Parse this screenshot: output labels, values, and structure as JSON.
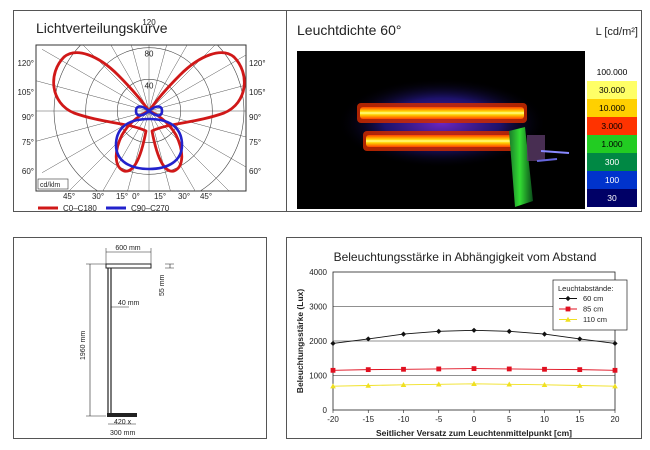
{
  "polar_panel": {
    "title": "Lichtverteilungskurve",
    "unit_label": "cd/klm",
    "radial_ticks": [
      "120",
      "80",
      "40"
    ],
    "left_angles": [
      "120°",
      "105°",
      "90°",
      "75°",
      "60°"
    ],
    "right_angles": [
      "120°",
      "105°",
      "90°",
      "75°",
      "60°"
    ],
    "bottom_angles": [
      "45°",
      "30°",
      "15°",
      "0°",
      "15°",
      "30°",
      "45°"
    ],
    "legend": [
      {
        "label": "C0–C180",
        "color": "#d01818"
      },
      {
        "label": "C90–C270",
        "color": "#2222cc"
      }
    ]
  },
  "luminance_panel": {
    "title": "Leuchtdichte 60°",
    "unit": "L [cd/m²]",
    "scale": [
      {
        "label": "100.000",
        "color": "#ffffff",
        "text": "#000"
      },
      {
        "label": "30.000",
        "color": "#ffff66",
        "text": "#000"
      },
      {
        "label": "10.000",
        "color": "#ffd000",
        "text": "#000"
      },
      {
        "label": "3.000",
        "color": "#ff3300",
        "text": "#000"
      },
      {
        "label": "1.000",
        "color": "#22cc22",
        "text": "#000"
      },
      {
        "label": "300",
        "color": "#008844",
        "text": "#fff"
      },
      {
        "label": "100",
        "color": "#0033cc",
        "text": "#fff"
      },
      {
        "label": "30",
        "color": "#000066",
        "text": "#fff"
      }
    ]
  },
  "dimensions_panel": {
    "width_label": "600 mm",
    "depth_label": "55 mm",
    "arm_label": "40 mm",
    "height_label": "1960 mm",
    "base_label_1": "420 x",
    "base_label_2": "300 mm"
  },
  "chart_data": {
    "type": "line",
    "title": "Beleuchtungsstärke in Abhängigkeit vom Abstand",
    "xlabel": "Seitlicher Versatz zum Leuchtenmittelpunkt [cm]",
    "ylabel": "Beleuchtungsstärke (Lux)",
    "x": [
      -20,
      -15,
      -10,
      -5,
      0,
      5,
      10,
      15,
      20
    ],
    "xlim": [
      -20,
      20
    ],
    "ylim": [
      0,
      4000
    ],
    "yticks": [
      0,
      1000,
      2000,
      3000,
      4000
    ],
    "grid": true,
    "legend_title": "Leuchtabstände:",
    "legend_position": "top-right",
    "series": [
      {
        "name": "60 cm",
        "color": "#111111",
        "marker": "diamond",
        "values": [
          1930,
          2060,
          2200,
          2280,
          2310,
          2280,
          2200,
          2060,
          1930
        ]
      },
      {
        "name": "85 cm",
        "color": "#e01020",
        "marker": "square",
        "values": [
          1150,
          1170,
          1180,
          1190,
          1200,
          1190,
          1180,
          1170,
          1150
        ]
      },
      {
        "name": "110 cm",
        "color": "#f0e020",
        "marker": "triangle",
        "values": [
          690,
          710,
          730,
          745,
          760,
          745,
          730,
          710,
          690
        ]
      }
    ]
  }
}
